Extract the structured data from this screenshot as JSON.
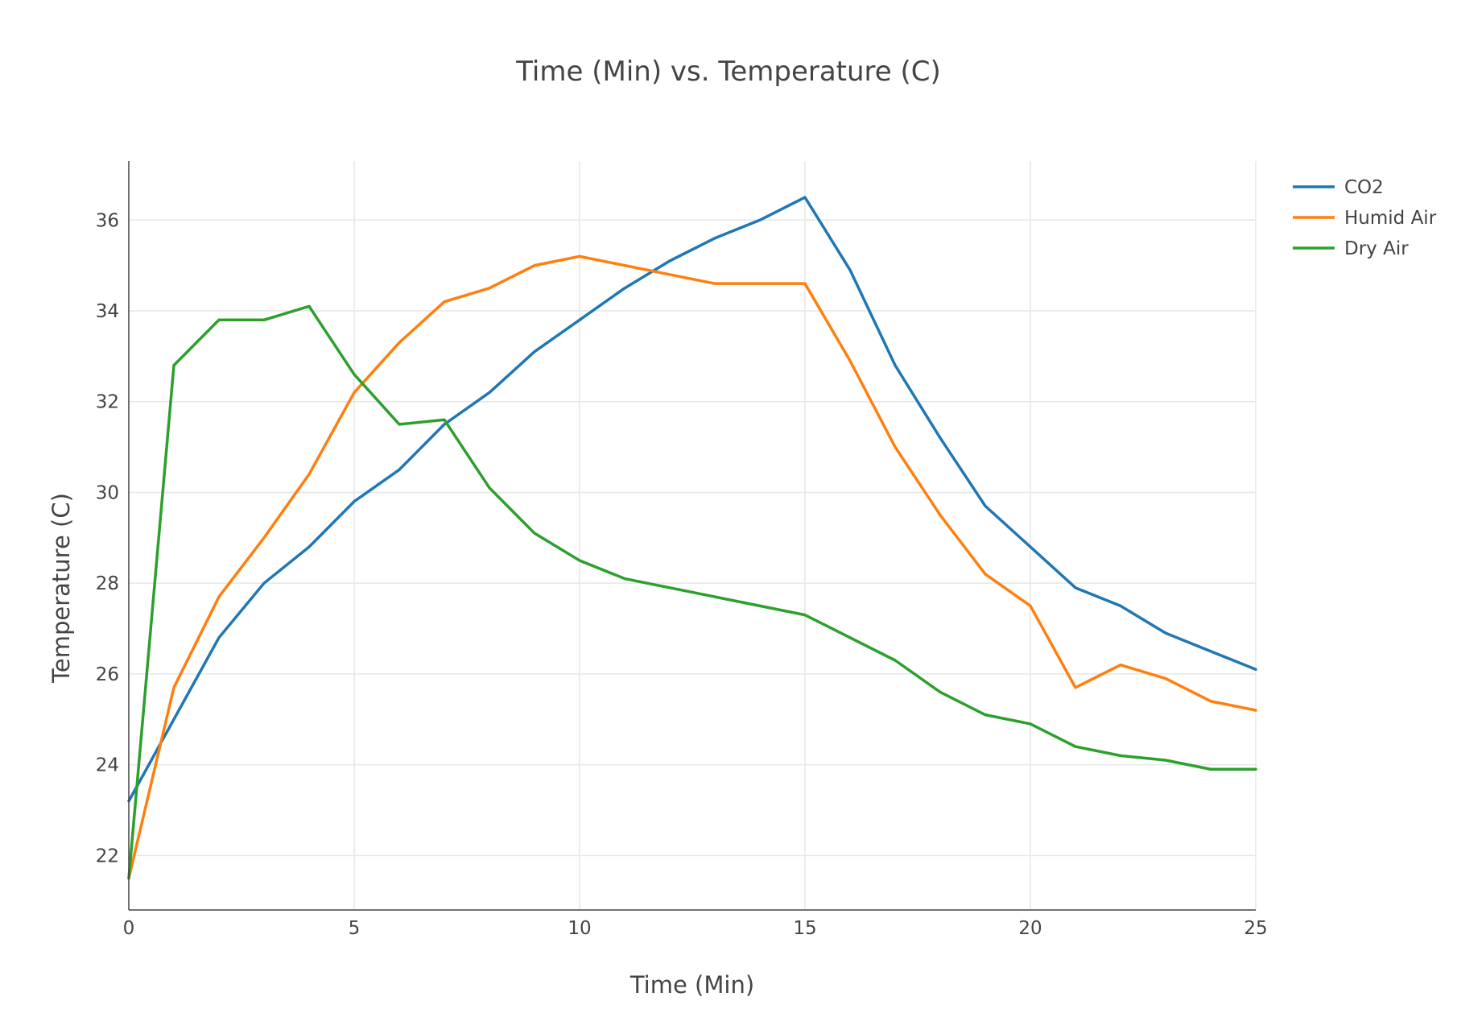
{
  "chart_data": {
    "type": "line",
    "title": "Time (Min) vs. Temperature (C)",
    "xlabel": "Time (Min)",
    "ylabel": "Temperature (C)",
    "xlim": [
      0,
      25
    ],
    "ylim": [
      20.8,
      37.3
    ],
    "xticks": [
      0,
      5,
      10,
      15,
      20,
      25
    ],
    "yticks": [
      22,
      24,
      26,
      28,
      30,
      32,
      34,
      36
    ],
    "grid": true,
    "legend_position": "top-right",
    "x": [
      0,
      1,
      2,
      3,
      4,
      5,
      6,
      7,
      8,
      9,
      10,
      11,
      12,
      13,
      14,
      15,
      16,
      17,
      18,
      19,
      20,
      21,
      22,
      23,
      24,
      25
    ],
    "series": [
      {
        "name": "CO2",
        "color": "#1f77b4",
        "values": [
          23.2,
          25.0,
          26.8,
          28.0,
          28.8,
          29.8,
          30.5,
          31.5,
          32.2,
          33.1,
          33.8,
          34.5,
          35.1,
          35.6,
          36.0,
          36.5,
          34.9,
          32.8,
          31.2,
          29.7,
          28.8,
          27.9,
          27.5,
          26.9,
          26.5,
          26.1
        ]
      },
      {
        "name": "Humid Air",
        "color": "#ff7f0e",
        "values": [
          21.5,
          25.7,
          27.7,
          29.0,
          30.4,
          32.2,
          33.3,
          34.2,
          34.5,
          35.0,
          35.2,
          35.0,
          34.8,
          34.6,
          34.6,
          34.6,
          32.9,
          31.0,
          29.5,
          28.2,
          27.5,
          25.7,
          26.2,
          25.9,
          25.4,
          25.2
        ]
      },
      {
        "name": "Dry Air",
        "color": "#2ca02c",
        "values": [
          21.5,
          32.8,
          33.8,
          33.8,
          34.1,
          32.6,
          31.5,
          31.6,
          30.1,
          29.1,
          28.5,
          28.1,
          27.9,
          27.7,
          27.5,
          27.3,
          26.8,
          26.3,
          25.6,
          25.1,
          24.9,
          24.4,
          24.2,
          24.1,
          23.9,
          23.9
        ]
      }
    ]
  }
}
